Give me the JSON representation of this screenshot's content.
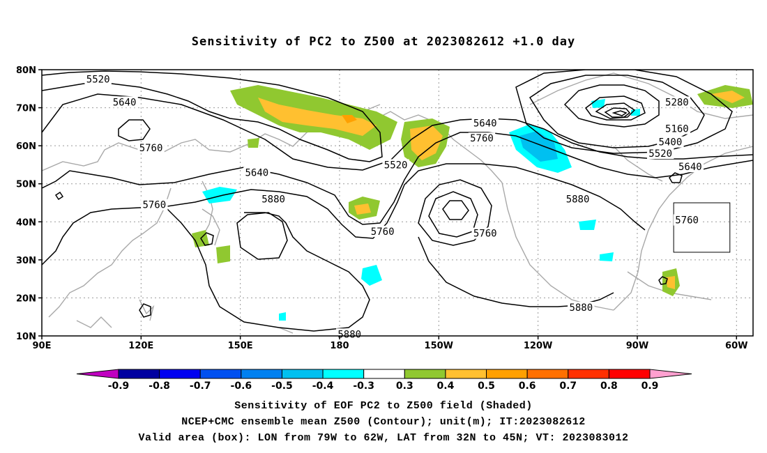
{
  "title": "Sensitivity of PC2 to Z500 at 2023082612 +1.0 day",
  "axes": {
    "lat_ticks": [
      "80N",
      "70N",
      "60N",
      "50N",
      "40N",
      "30N",
      "20N",
      "10N"
    ],
    "lon_ticks": [
      "90E",
      "120E",
      "150E",
      "180",
      "150W",
      "120W",
      "90W",
      "60W"
    ]
  },
  "contour_labels": [
    {
      "text": "5520",
      "lon": 107,
      "lat": 77.5
    },
    {
      "text": "5640",
      "lon": 115,
      "lat": 71.5
    },
    {
      "text": "5760",
      "lon": 123,
      "lat": 59.5
    },
    {
      "text": "5640",
      "lon": 155,
      "lat": 53
    },
    {
      "text": "5760",
      "lon": 124,
      "lat": 44.5
    },
    {
      "text": "5880",
      "lon": 160,
      "lat": 46
    },
    {
      "text": "5880",
      "lon": 183,
      "lat": 10.5
    },
    {
      "text": "5520",
      "lon": 197,
      "lat": 55
    },
    {
      "text": "5760",
      "lon": 193,
      "lat": 37.5
    },
    {
      "text": "5640",
      "lon": 224,
      "lat": 66
    },
    {
      "text": "5760",
      "lon": 223,
      "lat": 62
    },
    {
      "text": "5760",
      "lon": 224,
      "lat": 37
    },
    {
      "text": "5880",
      "lon": 252,
      "lat": 46
    },
    {
      "text": "5880",
      "lon": 253,
      "lat": 17.5
    },
    {
      "text": "5280",
      "lon": 282,
      "lat": 71.5
    },
    {
      "text": "5160",
      "lon": 282,
      "lat": 64.5
    },
    {
      "text": "5400",
      "lon": 280,
      "lat": 61
    },
    {
      "text": "5520",
      "lon": 277,
      "lat": 58
    },
    {
      "text": "5640",
      "lon": 286,
      "lat": 54.5
    },
    {
      "text": "5760",
      "lon": 285,
      "lat": 40.5
    }
  ],
  "valid_box": {
    "lon_min": 281,
    "lon_max": 298,
    "lat_min": 32,
    "lat_max": 45
  },
  "colorbar": {
    "colors": [
      "#c000c0",
      "#0000a0",
      "#0000f0",
      "#0050f0",
      "#0080f0",
      "#00c0f0",
      "#00ffff",
      "#ffffff",
      "#90c830",
      "#ffc030",
      "#ffa000",
      "#ff7000",
      "#ff3000",
      "#ff0000",
      "#ffa0d0"
    ],
    "labels": [
      "-0.9",
      "-0.8",
      "-0.7",
      "-0.6",
      "-0.5",
      "-0.4",
      "-0.3",
      "0.3",
      "0.4",
      "0.5",
      "0.6",
      "0.7",
      "0.8",
      "0.9"
    ]
  },
  "captions": {
    "line1": "Sensitivity of EOF PC2 to Z500 field (Shaded)",
    "line2": "NCEP+CMC ensemble mean Z500 (Contour); unit(m); IT:2023082612",
    "line3": "Valid area (box): LON from 79W to 62W, LAT from 32N to 45N; VT: 2023083012"
  }
}
